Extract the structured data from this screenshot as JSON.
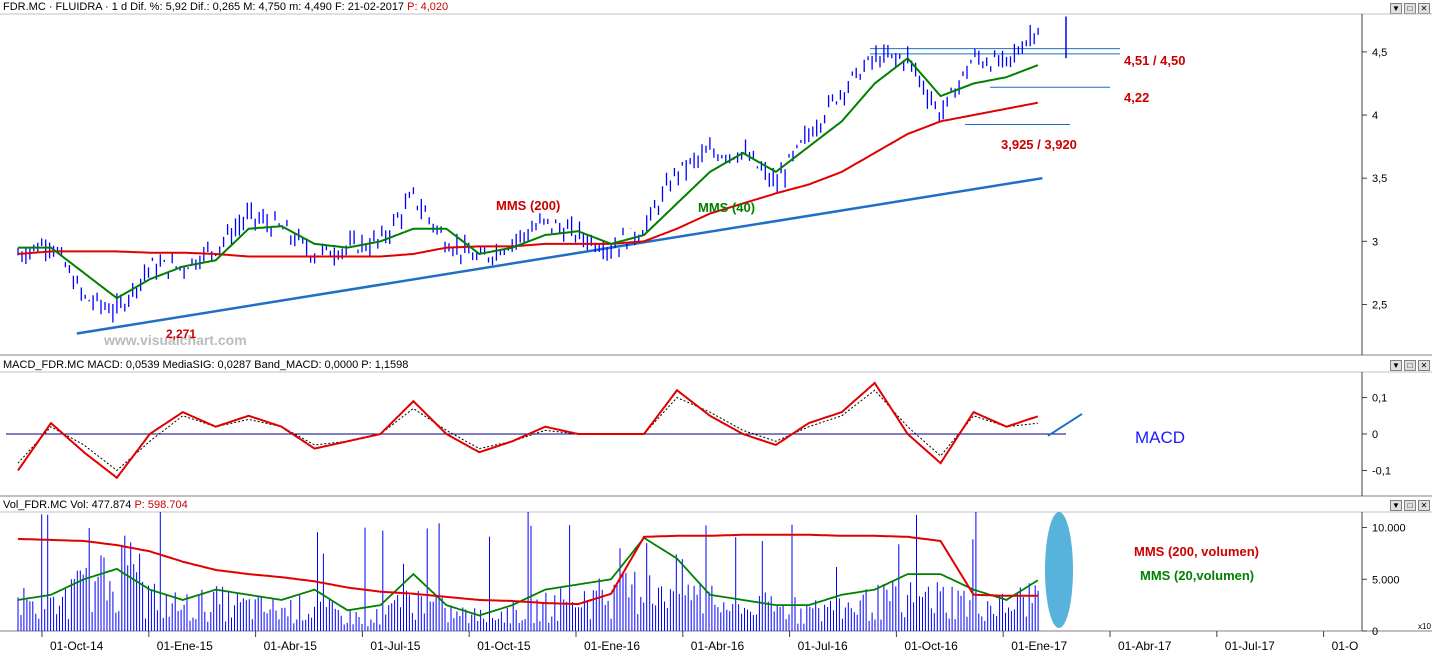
{
  "price_panel": {
    "title_black": "FDR.MC · FLUIDRA · 1 d Dif. %: 5,92 Dif.: 0,265 M: 4,750 m: 4,490 F: 21-02-2017",
    "title_red": "P: 4,020",
    "watermark": "www.visualchart.com",
    "annotations": {
      "mms200": "MMS (200)",
      "mms40": "MMS (40)",
      "r1": "4,51 / 4,50",
      "r2": "4,22",
      "r3": "3,925 / 3,920",
      "low": "2,271"
    },
    "colors": {
      "price": "#0000ff",
      "mms200": "#e00000",
      "mms40": "#008000",
      "trend": "#1f6fc4",
      "label_red": "#cc0000"
    }
  },
  "macd_panel": {
    "title": "MACD_FDR.MC MACD: 0,0539 MediaSIG: 0,0287 Band_MACD: 0,0000 P: 1,1598",
    "label": "MACD",
    "colors": {
      "macd": "#e00000",
      "signal": "#000000",
      "zero": "#000080"
    }
  },
  "volume_panel": {
    "title_black": "Vol_FDR.MC Vol: 477.874",
    "title_red": "P: 598.704",
    "label_200": "MMS (200, volumen)",
    "label_20": "MMS (20,volumen)",
    "scale_tag": "x10",
    "colors": {
      "bars": "#0000ff",
      "mms200": "#e00000",
      "mms20": "#008000",
      "highlight": "#3aa6d6"
    }
  },
  "x_labels": [
    "01-Oct-14",
    "01-Ene-15",
    "01-Abr-15",
    "01-Jul-15",
    "01-Oct-15",
    "01-Ene-16",
    "01-Abr-16",
    "01-Jul-16",
    "01-Oct-16",
    "01-Ene-17",
    "01-Abr-17",
    "01-Jul-17",
    "01-O"
  ],
  "buttons": {
    "minimize": "▼",
    "restore": "□",
    "close": "✕"
  },
  "chart_data": [
    {
      "type": "line",
      "x": [
        "2014-07",
        "2014-08",
        "2014-09",
        "2014-10",
        "2014-11",
        "2014-12",
        "2015-01",
        "2015-02",
        "2015-03",
        "2015-04",
        "2015-05",
        "2015-06",
        "2015-07",
        "2015-08",
        "2015-09",
        "2015-10",
        "2015-11",
        "2015-12",
        "2016-01",
        "2016-02",
        "2016-03",
        "2016-04",
        "2016-05",
        "2016-06",
        "2016-07",
        "2016-08",
        "2016-09",
        "2016-10",
        "2016-11",
        "2016-12",
        "2017-01",
        "2017-02"
      ],
      "series": [
        {
          "name": "FDR.MC",
          "values": [
            2.9,
            3.0,
            2.55,
            2.45,
            2.8,
            2.8,
            2.95,
            3.2,
            3.1,
            2.9,
            2.95,
            3.0,
            3.35,
            3.0,
            2.85,
            3.0,
            3.15,
            3.05,
            2.95,
            3.1,
            3.55,
            3.7,
            3.7,
            3.45,
            3.85,
            4.2,
            4.45,
            4.45,
            4.0,
            4.45,
            4.4,
            4.72
          ]
        },
        {
          "name": "MMS (40)",
          "values": [
            2.95,
            2.95,
            2.75,
            2.55,
            2.7,
            2.8,
            2.85,
            3.1,
            3.12,
            2.98,
            2.95,
            3.0,
            3.1,
            3.1,
            2.9,
            2.95,
            3.05,
            3.08,
            2.98,
            3.05,
            3.3,
            3.55,
            3.7,
            3.55,
            3.75,
            3.95,
            4.25,
            4.45,
            4.15,
            4.25,
            4.3,
            4.4
          ]
        },
        {
          "name": "MMS (200)",
          "values": [
            2.9,
            2.92,
            2.92,
            2.92,
            2.91,
            2.91,
            2.9,
            2.88,
            2.88,
            2.88,
            2.88,
            2.88,
            2.9,
            2.95,
            2.96,
            2.96,
            2.98,
            2.98,
            2.98,
            3.0,
            3.1,
            3.22,
            3.3,
            3.38,
            3.45,
            3.55,
            3.7,
            3.85,
            3.95,
            4.0,
            4.05,
            4.1
          ]
        }
      ],
      "ylim": [
        2.1,
        4.8
      ],
      "yticks": [
        "2,5",
        "3",
        "3,5",
        "4",
        "4,5"
      ],
      "resistance_levels": [
        4.51,
        4.5,
        4.22,
        3.925,
        3.92
      ],
      "trendline": {
        "from": [
          "2014-10",
          2.27
        ],
        "to": [
          "2017-03",
          3.5
        ]
      }
    },
    {
      "type": "line",
      "x": [
        "2014-07",
        "2014-08",
        "2014-09",
        "2014-10",
        "2014-11",
        "2014-12",
        "2015-01",
        "2015-02",
        "2015-03",
        "2015-04",
        "2015-05",
        "2015-06",
        "2015-07",
        "2015-08",
        "2015-09",
        "2015-10",
        "2015-11",
        "2015-12",
        "2016-01",
        "2016-02",
        "2016-03",
        "2016-04",
        "2016-05",
        "2016-06",
        "2016-07",
        "2016-08",
        "2016-09",
        "2016-10",
        "2016-11",
        "2016-12",
        "2017-01",
        "2017-02"
      ],
      "series": [
        {
          "name": "MACD",
          "values": [
            -0.1,
            0.03,
            -0.05,
            -0.12,
            0.0,
            0.06,
            0.02,
            0.05,
            0.02,
            -0.04,
            -0.02,
            0.0,
            0.09,
            0.0,
            -0.05,
            -0.02,
            0.02,
            0.0,
            0.0,
            0.0,
            0.12,
            0.05,
            0.0,
            -0.03,
            0.03,
            0.06,
            0.14,
            0.0,
            -0.08,
            0.06,
            0.02,
            0.05
          ]
        },
        {
          "name": "MediaSIG",
          "values": [
            -0.08,
            0.02,
            -0.03,
            -0.1,
            -0.02,
            0.05,
            0.02,
            0.04,
            0.02,
            -0.03,
            -0.02,
            0.0,
            0.07,
            0.01,
            -0.04,
            -0.02,
            0.01,
            0.0,
            0.0,
            0.0,
            0.1,
            0.06,
            0.01,
            -0.02,
            0.02,
            0.05,
            0.12,
            0.02,
            -0.06,
            0.05,
            0.02,
            0.03
          ]
        }
      ],
      "ylim": [
        -0.17,
        0.17
      ],
      "yticks": [
        "0,1",
        "0",
        "-0,1"
      ]
    },
    {
      "type": "bar",
      "x": [
        "2014-07",
        "2014-08",
        "2014-09",
        "2014-10",
        "2014-11",
        "2014-12",
        "2015-01",
        "2015-02",
        "2015-03",
        "2015-04",
        "2015-05",
        "2015-06",
        "2015-07",
        "2015-08",
        "2015-09",
        "2015-10",
        "2015-11",
        "2015-12",
        "2016-01",
        "2016-02",
        "2016-03",
        "2016-04",
        "2016-05",
        "2016-06",
        "2016-07",
        "2016-08",
        "2016-09",
        "2016-10",
        "2016-11",
        "2016-12",
        "2017-01",
        "2017-02"
      ],
      "series": [
        {
          "name": "Vol_FDR.MC",
          "values": [
            3000,
            2500,
            4500,
            5500,
            3500,
            2500,
            3000,
            2500,
            2200,
            2500,
            1500,
            1500,
            3500,
            2000,
            1500,
            2000,
            2500,
            3500,
            3500,
            4500,
            5000,
            3000,
            2500,
            2500,
            2000,
            2500,
            3000,
            3500,
            3500,
            3000,
            2500,
            4000
          ]
        },
        {
          "name": "MMS (200, volumen)",
          "values": [
            8900,
            8800,
            8700,
            8300,
            7700,
            6700,
            5900,
            5500,
            5200,
            4800,
            4200,
            3800,
            3600,
            3300,
            3000,
            2900,
            2700,
            2600,
            3600,
            9100,
            9200,
            9200,
            9300,
            9300,
            9300,
            9200,
            9200,
            9100,
            8700,
            3500,
            3400,
            3400
          ]
        },
        {
          "name": "MMS (20,volumen)",
          "values": [
            3000,
            3500,
            5000,
            6000,
            4000,
            3000,
            4000,
            3500,
            3000,
            4000,
            2000,
            2500,
            5500,
            2500,
            1500,
            2500,
            4000,
            4500,
            5000,
            9000,
            7000,
            3500,
            3000,
            2500,
            2500,
            3500,
            4000,
            5500,
            5500,
            4000,
            3000,
            5000
          ]
        }
      ],
      "ylim": [
        0,
        11500
      ],
      "yticks": [
        "10.000",
        "5.000",
        "0"
      ]
    }
  ]
}
